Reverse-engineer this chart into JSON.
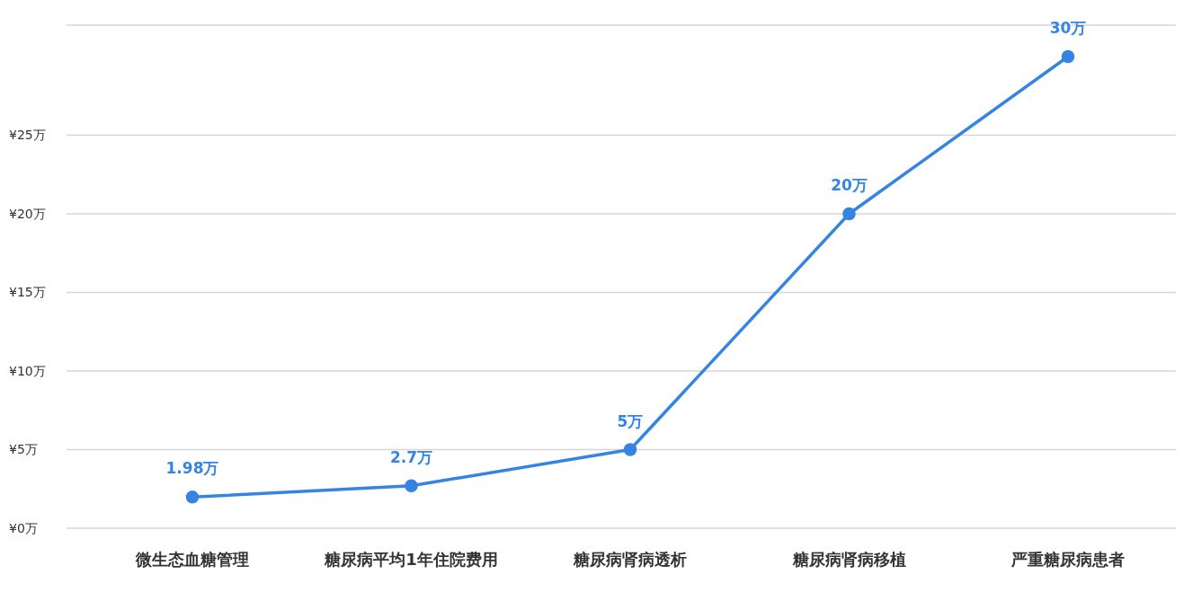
{
  "chart_data": {
    "type": "line",
    "categories": [
      "微生态血糖管理",
      "糖尿病平均1年住院费用",
      "糖尿病肾病透析",
      "糖尿病肾病移植",
      "严重糖尿病患者"
    ],
    "series": [
      {
        "color": "#3584e4",
        "values": [
          1.98,
          2.7,
          5,
          20,
          30
        ],
        "value_labels": [
          "1.98万",
          "2.7万",
          "5万",
          "20万",
          "30万"
        ]
      }
    ],
    "ylim": [
      0,
      32
    ],
    "yticks": [
      {
        "value": 0,
        "label": "¥0万"
      },
      {
        "value": 5,
        "label": "¥5万"
      },
      {
        "value": 10,
        "label": "¥10万"
      },
      {
        "value": 15,
        "label": "¥15万"
      },
      {
        "value": 20,
        "label": "¥20万"
      },
      {
        "value": 25,
        "label": "¥25万"
      }
    ],
    "grid": "y",
    "marker": "circle",
    "line_style": "solid",
    "legend": false
  }
}
